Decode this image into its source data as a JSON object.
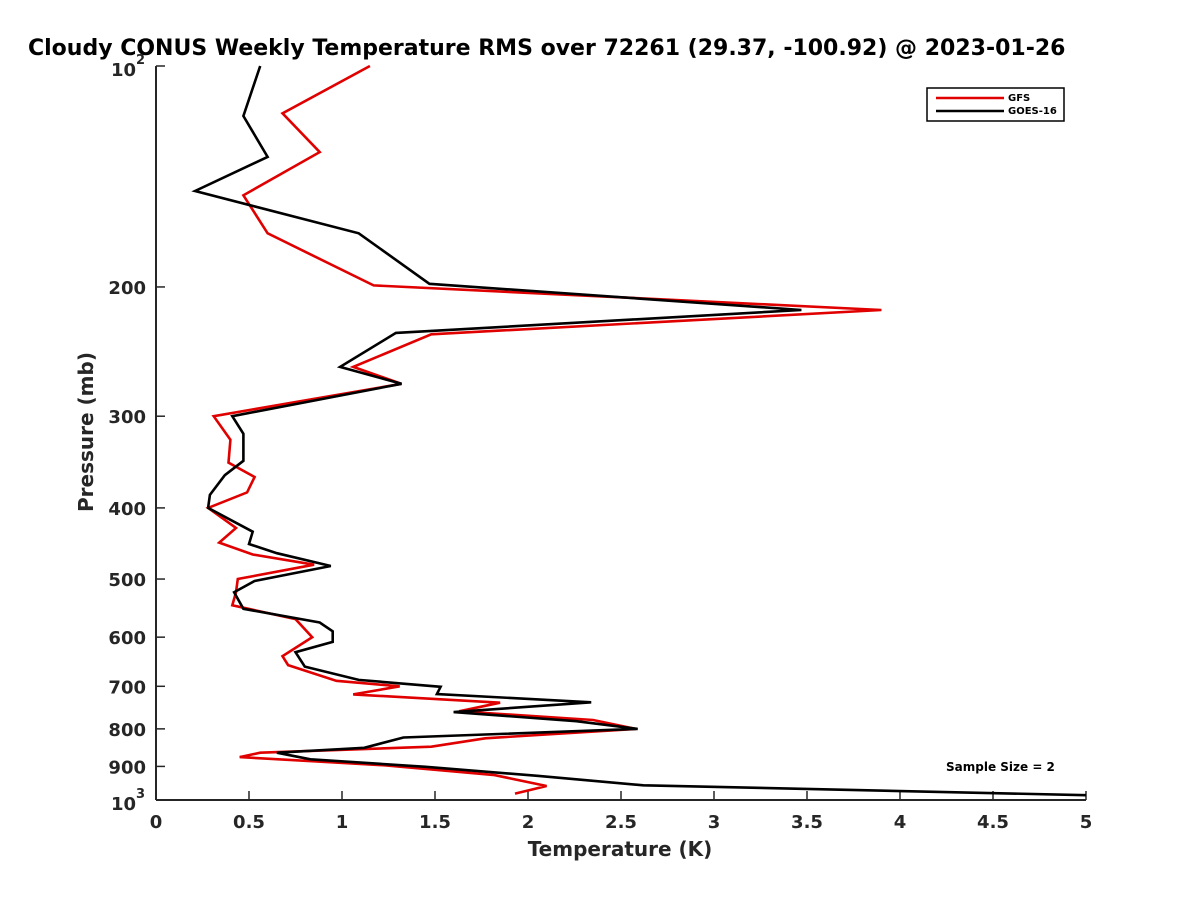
{
  "chart_data": {
    "type": "line",
    "title": "Cloudy CONUS Weekly Temperature RMS over 72261 (29.37, -100.92) @ 2023-01-26",
    "xlabel": "Temperature (K)",
    "ylabel": "Pressure (mb)",
    "xlim": [
      0,
      5
    ],
    "ylim": [
      100,
      1000
    ],
    "yscale": "log",
    "y_reversed": true,
    "x_ticks": [
      {
        "value": 0,
        "label": "0"
      },
      {
        "value": 0.5,
        "label": "0.5"
      },
      {
        "value": 1,
        "label": "1"
      },
      {
        "value": 1.5,
        "label": "1.5"
      },
      {
        "value": 2,
        "label": "2"
      },
      {
        "value": 2.5,
        "label": "2.5"
      },
      {
        "value": 3,
        "label": "3"
      },
      {
        "value": 3.5,
        "label": "3.5"
      },
      {
        "value": 4,
        "label": "4"
      },
      {
        "value": 4.5,
        "label": "4.5"
      },
      {
        "value": 5,
        "label": "5"
      }
    ],
    "y_ticks": [
      {
        "value": 100,
        "base": "10",
        "exp": "2"
      },
      {
        "value": 200,
        "label": "200"
      },
      {
        "value": 300,
        "label": "300"
      },
      {
        "value": 400,
        "label": "400"
      },
      {
        "value": 500,
        "label": "500"
      },
      {
        "value": 600,
        "label": "600"
      },
      {
        "value": 700,
        "label": "700"
      },
      {
        "value": 800,
        "label": "800"
      },
      {
        "value": 900,
        "label": "900"
      },
      {
        "value": 1000,
        "base": "10",
        "exp": "3"
      }
    ],
    "legend_position": "top-right",
    "annotation": "Sample Size = 2",
    "series": [
      {
        "name": "GFS",
        "color": "#e00000",
        "points": [
          [
            1.15,
            100
          ],
          [
            0.68,
            116
          ],
          [
            0.88,
            131
          ],
          [
            0.47,
            150
          ],
          [
            0.6,
            169
          ],
          [
            1.17,
            199
          ],
          [
            3.9,
            215
          ],
          [
            1.48,
            232
          ],
          [
            1.06,
            257
          ],
          [
            1.32,
            271
          ],
          [
            0.31,
            300
          ],
          [
            0.4,
            323
          ],
          [
            0.39,
            347
          ],
          [
            0.53,
            363
          ],
          [
            0.49,
            381
          ],
          [
            0.28,
            400
          ],
          [
            0.43,
            426
          ],
          [
            0.34,
            446
          ],
          [
            0.52,
            463
          ],
          [
            0.85,
            478
          ],
          [
            0.44,
            500
          ],
          [
            0.43,
            521
          ],
          [
            0.41,
            543
          ],
          [
            0.75,
            567
          ],
          [
            0.84,
            600
          ],
          [
            0.68,
            637
          ],
          [
            0.71,
            655
          ],
          [
            0.97,
            688
          ],
          [
            1.31,
            700
          ],
          [
            1.06,
            718
          ],
          [
            1.85,
            737
          ],
          [
            1.63,
            757
          ],
          [
            2.35,
            778
          ],
          [
            2.58,
            800
          ],
          [
            1.77,
            824
          ],
          [
            1.48,
            846
          ],
          [
            0.56,
            862
          ],
          [
            0.45,
            874
          ],
          [
            1.23,
            897
          ],
          [
            1.82,
            925
          ],
          [
            2.1,
            957
          ],
          [
            1.93,
            980
          ]
        ]
      },
      {
        "name": "GOES-16",
        "color": "#000000",
        "points": [
          [
            0.56,
            100
          ],
          [
            0.47,
            117
          ],
          [
            0.6,
            133
          ],
          [
            0.21,
            148
          ],
          [
            1.09,
            169
          ],
          [
            1.47,
            198
          ],
          [
            3.47,
            215
          ],
          [
            1.29,
            231
          ],
          [
            0.99,
            257
          ],
          [
            1.32,
            271
          ],
          [
            0.41,
            300
          ],
          [
            0.47,
            317
          ],
          [
            0.47,
            345
          ],
          [
            0.37,
            361
          ],
          [
            0.29,
            384
          ],
          [
            0.28,
            400
          ],
          [
            0.52,
            431
          ],
          [
            0.5,
            448
          ],
          [
            0.65,
            461
          ],
          [
            0.94,
            480
          ],
          [
            0.53,
            503
          ],
          [
            0.42,
            521
          ],
          [
            0.47,
            549
          ],
          [
            0.88,
            573
          ],
          [
            0.95,
            589
          ],
          [
            0.95,
            609
          ],
          [
            0.75,
            629
          ],
          [
            0.8,
            658
          ],
          [
            1.09,
            686
          ],
          [
            1.53,
            701
          ],
          [
            1.51,
            717
          ],
          [
            2.34,
            736
          ],
          [
            1.6,
            759
          ],
          [
            2.26,
            781
          ],
          [
            2.59,
            800
          ],
          [
            1.33,
            822
          ],
          [
            1.12,
            849
          ],
          [
            0.65,
            862
          ],
          [
            0.83,
            880
          ],
          [
            1.45,
            901
          ],
          [
            2.05,
            927
          ],
          [
            2.62,
            955
          ],
          [
            5.0,
            985
          ]
        ]
      }
    ]
  }
}
